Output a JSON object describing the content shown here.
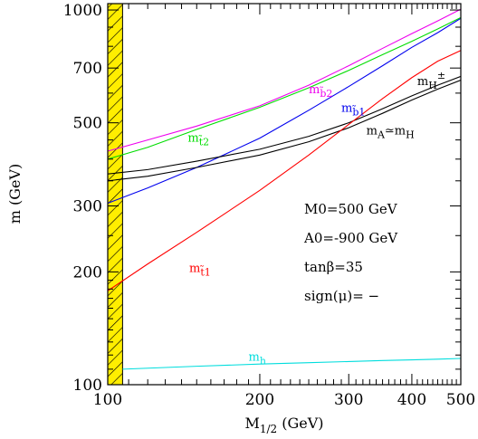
{
  "chart_data": {
    "type": "line",
    "xscale": "log",
    "yscale": "log",
    "xlim": [
      100,
      500
    ],
    "ylim": [
      100,
      1040
    ],
    "xlabel": {
      "main": "M",
      "sub": "1/2",
      "rest": " (GeV)"
    },
    "ylabel": "m (GeV)",
    "xticks": [
      100,
      200,
      300,
      400,
      500
    ],
    "xtick_labels": [
      "100",
      "200",
      "300",
      "400",
      "500"
    ],
    "yticks": [
      100,
      200,
      300,
      500,
      700,
      1000
    ],
    "ytick_labels": [
      "100",
      "200",
      "300",
      "500",
      "700",
      "1000"
    ],
    "excluded_region": {
      "x_from": 100,
      "x_to": 107,
      "color": "#ffee00"
    },
    "annotations": [
      "M0=500 GeV",
      "A0=-900 GeV",
      "tanβ=35",
      "sign(μ)= −"
    ],
    "series": [
      {
        "name": "m_b2",
        "label_main": "m",
        "label_sub": "b̃2",
        "color": "#ee00ee",
        "label_at": [
          250,
          600
        ],
        "x": [
          100,
          120,
          150,
          200,
          250,
          300,
          350,
          400,
          450,
          500
        ],
        "y": [
          420,
          450,
          490,
          555,
          630,
          710,
          790,
          865,
          935,
          1005
        ]
      },
      {
        "name": "m_b1",
        "label_main": "m",
        "label_sub": "b̃1",
        "color": "#0000ee",
        "label_at": [
          290,
          535
        ],
        "x": [
          100,
          120,
          150,
          200,
          250,
          300,
          350,
          400,
          450,
          500
        ],
        "y": [
          305,
          335,
          380,
          455,
          540,
          625,
          710,
          795,
          870,
          950
        ]
      },
      {
        "name": "m_t2",
        "label_main": "m",
        "label_sub": "t̃2",
        "color": "#00dd00",
        "label_at": [
          144,
          445
        ],
        "x": [
          100,
          120,
          150,
          200,
          250,
          300,
          350,
          400,
          450,
          500
        ],
        "y": [
          400,
          430,
          480,
          550,
          620,
          690,
          760,
          825,
          890,
          955
        ]
      },
      {
        "name": "m_H±",
        "label_main": "m",
        "label_sub": "H",
        "label_sup": "±",
        "color": "#000000",
        "label_at": [
          410,
          630
        ],
        "x": [
          100,
          120,
          150,
          200,
          250,
          300,
          350,
          400,
          450,
          500
        ],
        "y": [
          365,
          375,
          395,
          425,
          460,
          500,
          545,
          590,
          630,
          665
        ]
      },
      {
        "name": "m_A≈m_H",
        "label_main": "m",
        "label_sub": "A",
        "label_rest": "≃m",
        "label_sub2": "H",
        "color": "#000000",
        "label_at": [
          325,
          465
        ],
        "x": [
          100,
          120,
          150,
          200,
          250,
          300,
          350,
          400,
          450,
          500
        ],
        "y": [
          350,
          360,
          380,
          410,
          445,
          485,
          530,
          575,
          615,
          650
        ]
      },
      {
        "name": "m_t1",
        "label_main": "m",
        "label_sub": "t̃1",
        "color": "#ff0000",
        "label_at": [
          145,
          200
        ],
        "x": [
          100,
          120,
          150,
          200,
          250,
          300,
          350,
          400,
          450,
          500
        ],
        "y": [
          178,
          210,
          255,
          330,
          410,
          495,
          580,
          660,
          730,
          780
        ]
      },
      {
        "name": "m_h",
        "label_main": "m",
        "label_sub": "h",
        "color": "#00dddd",
        "label_at": [
          190,
          116
        ],
        "x": [
          107,
          150,
          200,
          250,
          300,
          350,
          400,
          450,
          500
        ],
        "y": [
          110,
          112,
          113.5,
          114.5,
          115.3,
          116,
          116.5,
          117,
          117.5
        ]
      }
    ]
  }
}
